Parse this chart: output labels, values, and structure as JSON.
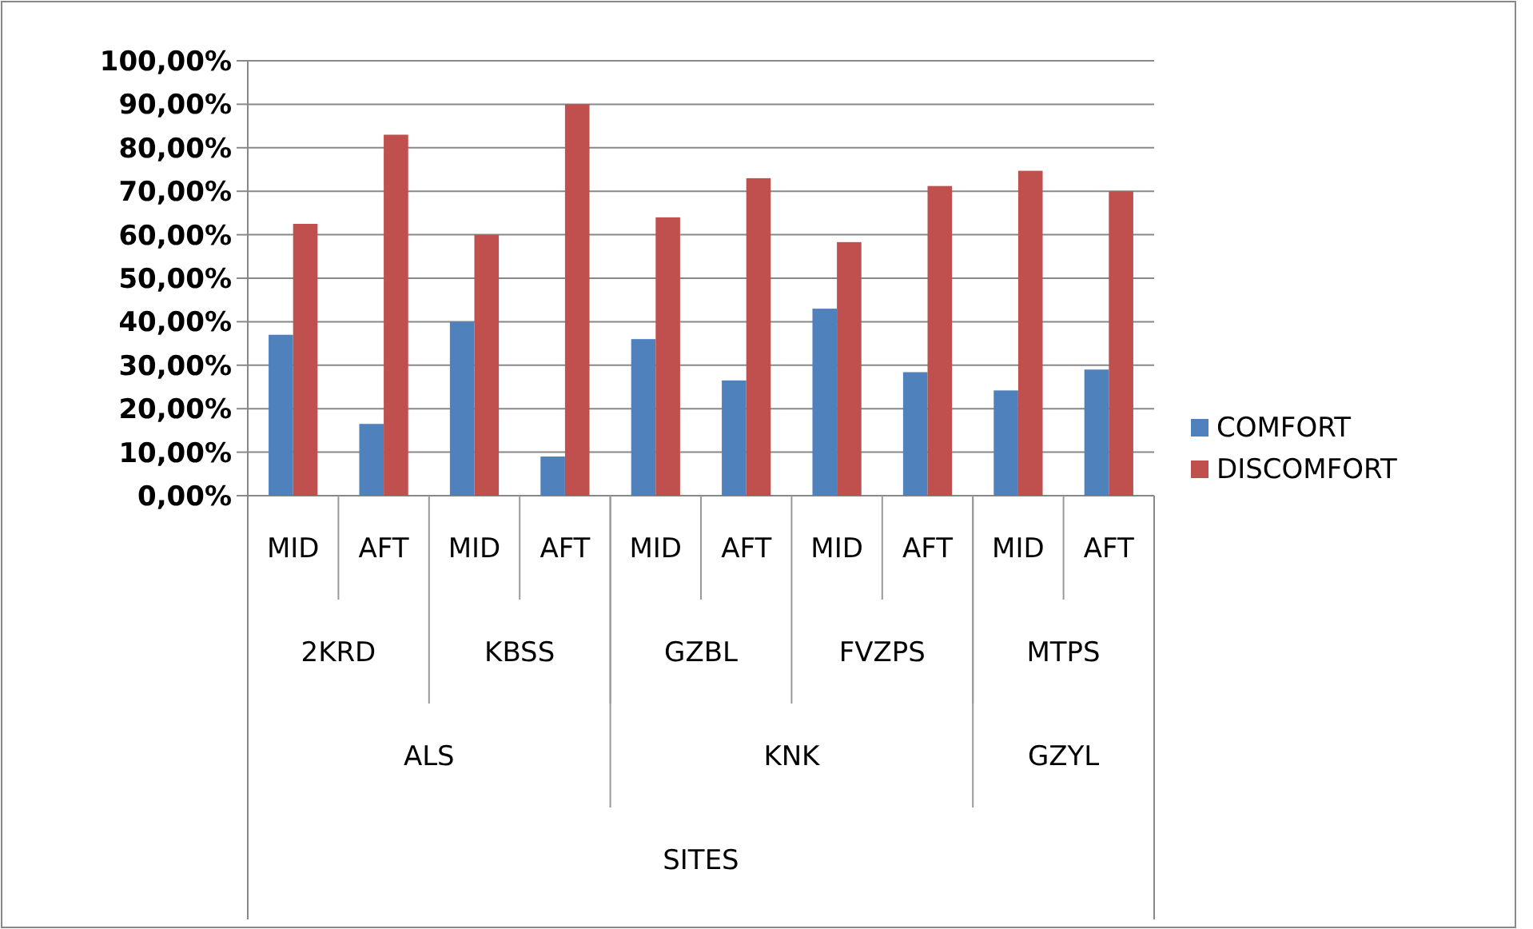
{
  "chart_data": {
    "type": "bar",
    "categories": [
      "MID",
      "AFT",
      "MID",
      "AFT",
      "MID",
      "AFT",
      "MID",
      "AFT",
      "MID",
      "AFT"
    ],
    "annotations": [
      "2KRD",
      "KBSS",
      "GZBL",
      "FVZPS",
      "MTPS",
      "ALS",
      "KNK",
      "GZYL",
      "SITES"
    ],
    "series": [
      {
        "name": "COMFORT",
        "color": "#4f81bd",
        "values": [
          37,
          16.5,
          40,
          9,
          36,
          26.5,
          43,
          28.4,
          24.2,
          29
        ]
      },
      {
        "name": "DISCOMFORT",
        "color": "#c0504d",
        "values": [
          62.5,
          83,
          60,
          90,
          64,
          73,
          58.3,
          71.2,
          74.7,
          70
        ]
      }
    ],
    "ylim": [
      0,
      100
    ],
    "yticks": [
      {
        "value": 0,
        "label": "0,00%"
      },
      {
        "value": 10,
        "label": "10,00%"
      },
      {
        "value": 20,
        "label": "20,00%"
      },
      {
        "value": 30,
        "label": "30,00%"
      },
      {
        "value": 40,
        "label": "40,00%"
      },
      {
        "value": 50,
        "label": "50,00%"
      },
      {
        "value": 60,
        "label": "60,00%"
      },
      {
        "value": 70,
        "label": "70,00%"
      },
      {
        "value": 80,
        "label": "80,00%"
      },
      {
        "value": 90,
        "label": "90,00%"
      },
      {
        "value": 100,
        "label": "100,00%"
      }
    ],
    "grid": "y",
    "legend": "right"
  }
}
